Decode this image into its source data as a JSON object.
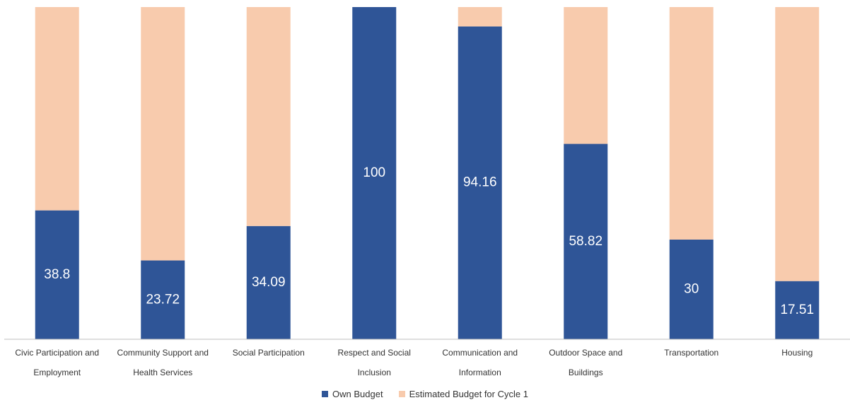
{
  "chart_data": {
    "type": "bar",
    "stacked": true,
    "categories": [
      "Civic Participation and Employment",
      "Community Support and Health Services",
      "Social Participation",
      "Respect and Social Inclusion",
      "Communication and Information",
      "Outdoor Space and Buildings",
      "Transportation",
      "Housing"
    ],
    "series": [
      {
        "name": "Own Budget",
        "color": "#2f5597",
        "values": [
          38.8,
          23.72,
          34.09,
          100,
          94.16,
          58.82,
          30,
          17.51
        ]
      },
      {
        "name": "Estimated Budget for Cycle 1",
        "color": "#f8cbad",
        "values": [
          61.2,
          76.28,
          65.91,
          0,
          5.84,
          41.18,
          70,
          82.49
        ]
      }
    ],
    "ylim": [
      0,
      100
    ],
    "legend": "bottom"
  }
}
